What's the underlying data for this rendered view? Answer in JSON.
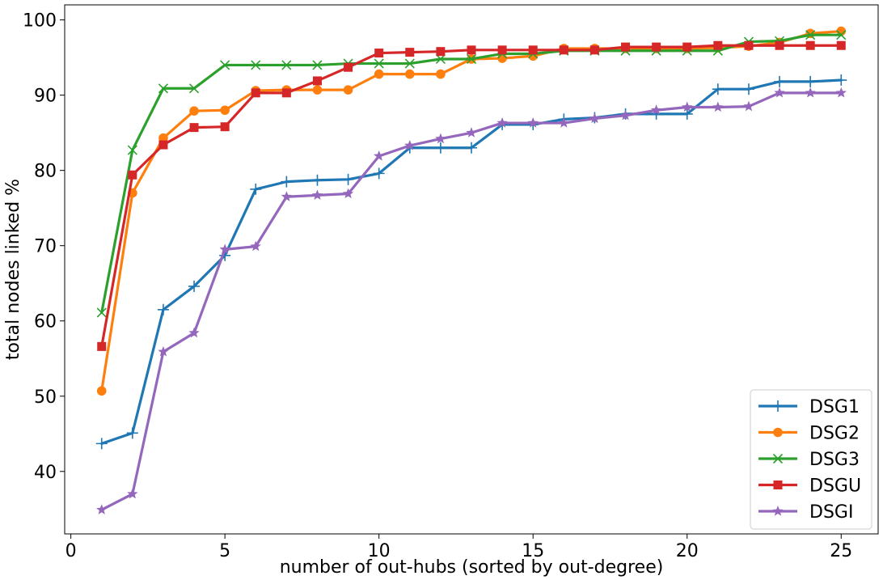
{
  "chart_data": {
    "type": "line",
    "xlabel": "number of out-hubs (sorted by out-degree)",
    "ylabel": "total nodes linked %",
    "xlim": [
      -0.2,
      26.2
    ],
    "ylim": [
      31.7,
      102
    ],
    "xticks": [
      0,
      5,
      10,
      15,
      20,
      25
    ],
    "yticks": [
      40,
      50,
      60,
      70,
      80,
      90,
      100
    ],
    "legend_position": "lower-right",
    "grid": false,
    "x": [
      1,
      2,
      3,
      4,
      5,
      6,
      7,
      8,
      9,
      10,
      11,
      12,
      13,
      14,
      15,
      16,
      17,
      18,
      19,
      20,
      21,
      22,
      23,
      24,
      25
    ],
    "series": [
      {
        "name": "DSG1",
        "color": "#1f77b4",
        "marker": "plus",
        "values": [
          43.7,
          45.1,
          61.5,
          64.6,
          68.7,
          77.5,
          78.5,
          78.7,
          78.8,
          79.6,
          83.0,
          83.0,
          83.0,
          86.1,
          86.1,
          86.8,
          87.0,
          87.5,
          87.5,
          87.5,
          90.8,
          90.8,
          91.8,
          91.8,
          92.0
        ]
      },
      {
        "name": "DSG2",
        "color": "#ff7f0e",
        "marker": "circle",
        "values": [
          50.7,
          77.0,
          84.3,
          87.9,
          88.0,
          90.6,
          90.7,
          90.7,
          90.7,
          92.8,
          92.8,
          92.8,
          94.8,
          94.9,
          95.2,
          96.2,
          96.2,
          96.2,
          96.2,
          96.2,
          96.3,
          96.5,
          97.0,
          98.2,
          98.5
        ]
      },
      {
        "name": "DSG3",
        "color": "#2ca02c",
        "marker": "x",
        "values": [
          61.1,
          82.7,
          90.9,
          90.9,
          94.0,
          94.0,
          94.0,
          94.0,
          94.2,
          94.2,
          94.2,
          94.8,
          94.8,
          95.5,
          95.5,
          95.9,
          95.9,
          95.9,
          95.9,
          95.9,
          95.9,
          97.1,
          97.2,
          98.0,
          98.0
        ]
      },
      {
        "name": "DSGU",
        "color": "#d62728",
        "marker": "square",
        "values": [
          56.6,
          79.4,
          83.4,
          85.7,
          85.8,
          90.3,
          90.3,
          91.9,
          93.7,
          95.6,
          95.7,
          95.8,
          96.0,
          96.0,
          96.0,
          96.0,
          96.0,
          96.4,
          96.4,
          96.4,
          96.6,
          96.6,
          96.6,
          96.6,
          96.6
        ]
      },
      {
        "name": "DSGI",
        "color": "#9467bd",
        "marker": "star",
        "values": [
          34.9,
          37.0,
          55.9,
          58.4,
          69.5,
          69.9,
          76.5,
          76.7,
          76.9,
          81.9,
          83.3,
          84.2,
          85.0,
          86.3,
          86.3,
          86.3,
          86.9,
          87.3,
          88.0,
          88.4,
          88.4,
          88.5,
          90.3,
          90.3,
          90.3
        ]
      }
    ]
  }
}
